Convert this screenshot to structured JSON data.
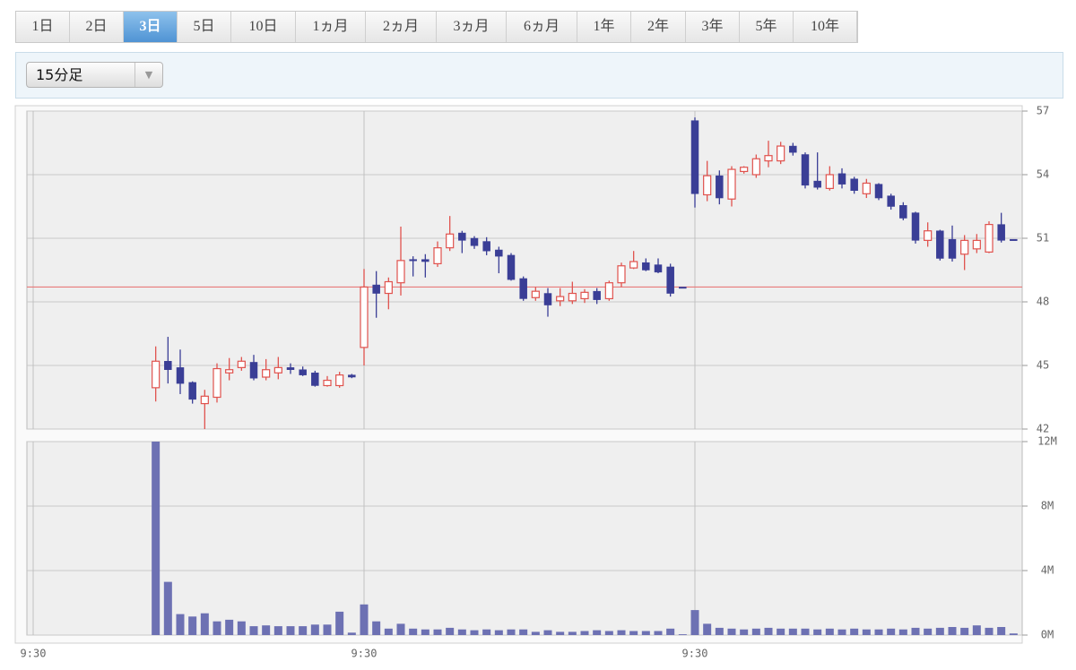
{
  "tabs": [
    "1日",
    "2日",
    "3日",
    "5日",
    "10日",
    "1ヵ月",
    "2ヵ月",
    "3ヵ月",
    "6ヵ月",
    "1年",
    "2年",
    "3年",
    "5年",
    "10年"
  ],
  "active_tab": 2,
  "interval_select": "15分足",
  "chart_data": {
    "type": "candlestick",
    "categories": [
      "9:30",
      null,
      null,
      null,
      null,
      null,
      null,
      null,
      null,
      null,
      null,
      null,
      null,
      null,
      null,
      null,
      null,
      null,
      null,
      null,
      null,
      null,
      null,
      null,
      null,
      null,
      null,
      "9:30",
      null,
      null,
      null,
      null,
      null,
      null,
      null,
      null,
      null,
      null,
      null,
      null,
      null,
      null,
      null,
      null,
      null,
      null,
      null,
      null,
      null,
      null,
      null,
      null,
      null,
      null,
      "9:30",
      null,
      null,
      null,
      null,
      null,
      null,
      null,
      null,
      null,
      null,
      null,
      null,
      null,
      null,
      null,
      null,
      null,
      null,
      null,
      null,
      null,
      null,
      null,
      null,
      null,
      null
    ],
    "open": [
      null,
      null,
      null,
      null,
      null,
      null,
      null,
      null,
      null,
      null,
      43.95,
      45.2,
      44.9,
      44.2,
      43.2,
      43.5,
      44.65,
      44.9,
      45.15,
      44.45,
      44.65,
      44.9,
      44.8,
      44.65,
      44.05,
      44.05,
      44.55,
      45.85,
      48.8,
      48.4,
      48.9,
      50.0,
      50.0,
      49.8,
      50.55,
      51.25,
      51.0,
      50.85,
      50.45,
      50.2,
      49.1,
      48.2,
      48.4,
      48.05,
      48.05,
      48.15,
      48.5,
      48.15,
      48.9,
      49.6,
      49.85,
      49.75,
      49.65,
      48.7,
      56.55,
      53.05,
      53.95,
      52.85,
      54.15,
      54.0,
      54.65,
      54.65,
      55.35,
      54.95,
      53.7,
      53.35,
      54.05,
      53.8,
      53.1,
      53.55,
      53.0,
      52.55,
      52.2,
      50.9,
      51.35,
      50.95,
      50.25,
      50.5,
      50.35,
      51.65,
      50.95
    ],
    "high": [
      null,
      null,
      null,
      null,
      null,
      null,
      null,
      null,
      null,
      null,
      45.9,
      46.35,
      45.75,
      44.25,
      43.85,
      45.1,
      45.35,
      45.4,
      45.5,
      45.3,
      45.4,
      45.1,
      44.95,
      44.75,
      44.5,
      44.7,
      44.6,
      49.55,
      49.45,
      49.15,
      51.55,
      50.15,
      50.25,
      50.85,
      52.05,
      51.35,
      51.1,
      51.05,
      50.6,
      50.3,
      49.2,
      48.7,
      48.65,
      48.65,
      48.95,
      48.6,
      48.65,
      49.0,
      49.85,
      50.4,
      50.05,
      50.05,
      49.8,
      48.7,
      56.7,
      54.65,
      54.2,
      54.4,
      54.4,
      54.95,
      55.6,
      55.55,
      55.5,
      55.05,
      55.05,
      54.4,
      54.3,
      53.9,
      53.8,
      53.6,
      53.1,
      52.7,
      52.25,
      51.75,
      51.4,
      51.6,
      51.15,
      51.2,
      51.8,
      52.2,
      50.95
    ],
    "low": [
      null,
      null,
      null,
      null,
      null,
      null,
      null,
      null,
      null,
      null,
      43.3,
      44.15,
      43.65,
      43.2,
      42.0,
      43.25,
      44.3,
      44.75,
      44.3,
      44.3,
      44.35,
      44.6,
      44.5,
      44.0,
      44.0,
      43.95,
      44.4,
      45.0,
      47.25,
      47.65,
      48.3,
      49.2,
      49.15,
      49.65,
      50.4,
      50.3,
      50.5,
      50.2,
      49.35,
      49.0,
      48.05,
      48.05,
      47.3,
      47.8,
      47.9,
      47.95,
      47.9,
      48.05,
      48.7,
      49.55,
      49.45,
      49.35,
      48.25,
      48.7,
      52.45,
      52.75,
      52.6,
      52.5,
      54.05,
      53.85,
      54.35,
      54.5,
      54.9,
      53.35,
      53.3,
      53.25,
      53.35,
      53.1,
      52.9,
      52.8,
      52.35,
      51.85,
      50.75,
      50.6,
      49.95,
      49.9,
      49.5,
      50.3,
      50.3,
      50.8,
      50.95
    ],
    "close": [
      null,
      null,
      null,
      null,
      null,
      null,
      null,
      null,
      null,
      null,
      45.2,
      44.8,
      44.15,
      43.4,
      43.55,
      44.85,
      44.8,
      45.2,
      44.4,
      44.8,
      44.9,
      44.8,
      44.55,
      44.05,
      44.3,
      44.55,
      44.45,
      48.7,
      48.4,
      48.95,
      49.95,
      49.95,
      49.9,
      50.55,
      51.2,
      50.9,
      50.65,
      50.4,
      50.15,
      49.05,
      48.15,
      48.5,
      47.85,
      48.25,
      48.4,
      48.45,
      48.1,
      48.9,
      49.7,
      49.9,
      49.5,
      49.4,
      48.4,
      48.7,
      53.1,
      53.95,
      52.9,
      54.25,
      54.35,
      54.75,
      54.9,
      55.35,
      55.05,
      53.5,
      53.4,
      54.0,
      53.55,
      53.25,
      53.6,
      52.9,
      52.5,
      51.95,
      50.9,
      51.35,
      50.05,
      50.05,
      50.9,
      50.9,
      51.65,
      50.9,
      50.95
    ],
    "ylim": [
      42,
      57
    ],
    "yticks": [
      42,
      45,
      48,
      51,
      54,
      57
    ],
    "reference_line": 48.7,
    "reference_color": "#e87a7a",
    "up_color": "#e0524d",
    "down_color": "#3a3e96",
    "grid": true,
    "volume": {
      "color": "#6d71b3",
      "values": [
        null,
        null,
        null,
        null,
        null,
        null,
        null,
        null,
        null,
        null,
        12000000,
        3300000,
        1300000,
        1150000,
        1350000,
        850000,
        950000,
        850000,
        550000,
        600000,
        550000,
        550000,
        550000,
        650000,
        650000,
        1450000,
        150000,
        1900000,
        850000,
        400000,
        700000,
        400000,
        350000,
        350000,
        450000,
        350000,
        300000,
        350000,
        300000,
        350000,
        350000,
        200000,
        300000,
        200000,
        200000,
        250000,
        300000,
        250000,
        300000,
        250000,
        250000,
        250000,
        400000,
        50000,
        1550000,
        700000,
        450000,
        400000,
        350000,
        400000,
        450000,
        400000,
        400000,
        400000,
        350000,
        400000,
        350000,
        400000,
        350000,
        350000,
        400000,
        350000,
        450000,
        400000,
        450000,
        500000,
        450000,
        600000,
        450000,
        500000,
        100000
      ],
      "ylim": [
        0,
        12000000
      ],
      "yticks": [
        {
          "value": 0,
          "label": "0M"
        },
        {
          "value": 4000000,
          "label": "4M"
        },
        {
          "value": 8000000,
          "label": "8M"
        },
        {
          "value": 12000000,
          "label": "12M"
        }
      ]
    }
  }
}
